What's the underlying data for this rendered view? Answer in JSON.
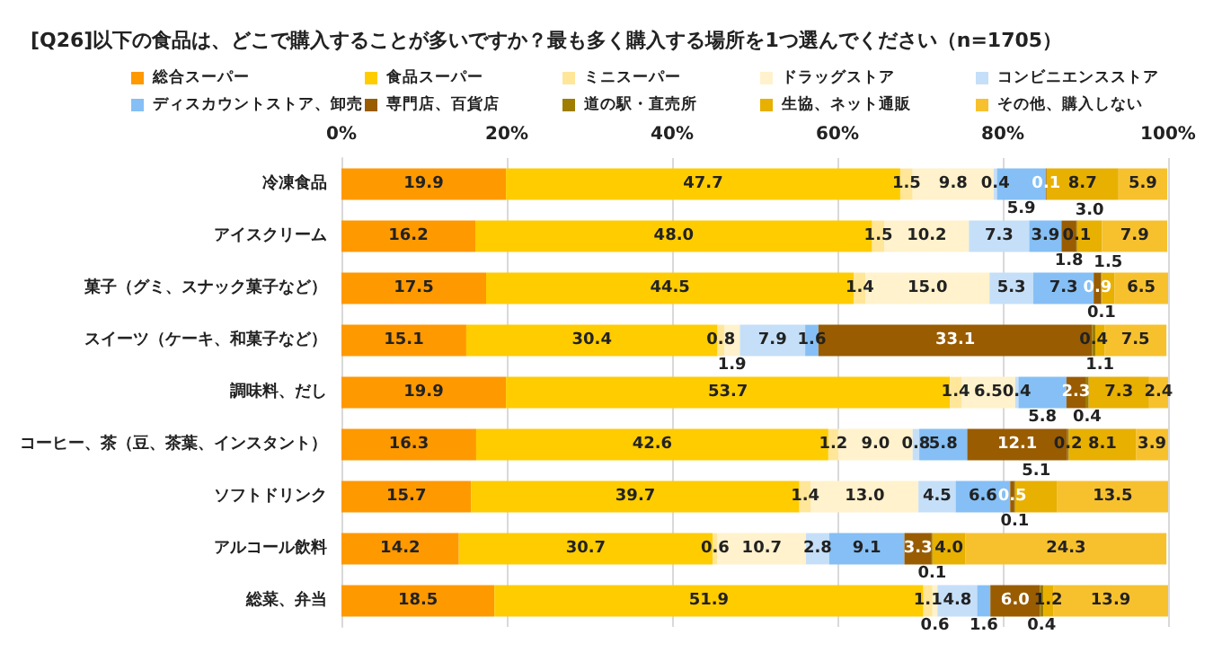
{
  "chart_data": {
    "type": "bar",
    "orientation": "horizontal",
    "stacked": true,
    "title": "[Q26]以下の食品は、どこで購入することが多いですか？最も多く購入する場所を1つ選んでください（n=1705）",
    "categories": [
      "冷凍食品",
      "アイスクリーム",
      "菓子（グミ、スナック菓子など）",
      "スイーツ（ケーキ、和菓子など）",
      "調味料、だし",
      "コーヒー、茶（豆、茶葉、インスタント）",
      "ソフトドリンク",
      "アルコール飲料",
      "総菜、弁当"
    ],
    "series": [
      {
        "name": "総合スーパー",
        "color": "#ff9900",
        "values": [
          19.9,
          16.2,
          17.5,
          15.1,
          19.9,
          16.3,
          15.7,
          14.2,
          18.5
        ],
        "value_labels": [
          "19.9",
          "16.2",
          "17.5",
          "15.1",
          "19.9",
          "16.3",
          "15.7",
          "14.2",
          "18.5"
        ]
      },
      {
        "name": "食品スーパー",
        "color": "#ffcc00",
        "values": [
          47.7,
          48.0,
          44.5,
          30.4,
          53.7,
          42.6,
          39.7,
          30.7,
          51.9
        ],
        "value_labels": [
          "47.7",
          "48.0",
          "44.5",
          "30.4",
          "53.7",
          "42.6",
          "39.7",
          "30.7",
          "51.9"
        ]
      },
      {
        "name": "ミニスーパー",
        "color": "#ffe699",
        "values": [
          1.5,
          1.5,
          1.4,
          0.8,
          1.4,
          1.2,
          1.4,
          0.6,
          1.1
        ],
        "value_labels": [
          "1.5",
          "1.5",
          "1.4",
          "0.8",
          "1.4",
          "1.2",
          "1.4",
          "0.6",
          "1.1"
        ]
      },
      {
        "name": "ドラッグストア",
        "color": "#fff2cc",
        "values": [
          9.8,
          10.2,
          15.0,
          1.9,
          6.5,
          9.0,
          13.0,
          10.7,
          0.6
        ],
        "value_labels": [
          "9.8",
          "10.2",
          "15.0",
          "1.9",
          "6.5",
          "9.0",
          "13.0",
          "10.7",
          "0.6"
        ]
      },
      {
        "name": "コンビニエンスストア",
        "color": "#c5dff8",
        "values": [
          0.4,
          7.3,
          5.3,
          7.9,
          0.4,
          0.8,
          4.5,
          2.8,
          4.8
        ],
        "value_labels": [
          "0.4",
          "7.3",
          "5.3",
          "7.9",
          "0.4",
          "0.8",
          "4.5",
          "2.8",
          "4.8"
        ]
      },
      {
        "name": "ディスカウントストア、卸売",
        "color": "#85bff5",
        "values": [
          5.9,
          3.9,
          7.3,
          1.6,
          5.8,
          5.8,
          6.6,
          9.1,
          1.6
        ],
        "value_labels": [
          "5.9",
          "3.9",
          "7.3",
          "1.6",
          "5.8",
          "5.8",
          "6.6",
          "9.1",
          "1.6"
        ]
      },
      {
        "name": "専門店、百貨店",
        "color": "#995c00",
        "values": [
          0.1,
          1.8,
          0.9,
          33.1,
          2.3,
          12.1,
          0.5,
          3.3,
          6.0
        ],
        "value_labels": [
          "0.1",
          "1.8",
          "0.9",
          "33.1",
          "2.3",
          "12.1",
          "0.5",
          "3.3",
          "6.0"
        ]
      },
      {
        "name": "道の駅・直売所",
        "color": "#9e7d00",
        "values": [
          null,
          0.1,
          0.1,
          0.4,
          0.4,
          0.2,
          0.1,
          0.1,
          0.4
        ],
        "value_labels": [
          null,
          "0.1",
          "0.1",
          "0.4",
          "0.4",
          "0.2",
          "0.1",
          "0.1",
          "0.4"
        ]
      },
      {
        "name": "生協、ネット通販",
        "color": "#e8b000",
        "values": [
          8.7,
          3.0,
          1.5,
          1.1,
          7.3,
          8.1,
          5.1,
          4.0,
          1.2
        ],
        "value_labels": [
          "8.7",
          "3.0",
          "1.5",
          "1.1",
          "7.3",
          "8.1",
          "5.1",
          "4.0",
          "1.2"
        ]
      },
      {
        "name": "その他、購入しない",
        "color": "#f7c12e",
        "values": [
          5.9,
          7.9,
          6.5,
          7.5,
          2.4,
          3.9,
          13.5,
          24.3,
          13.9
        ],
        "value_labels": [
          "5.9",
          "7.9",
          "6.5",
          "7.5",
          "2.4",
          "3.9",
          "13.5",
          "24.3",
          "13.9"
        ]
      }
    ],
    "xlim": [
      0,
      100
    ],
    "xticks": [
      {
        "value": 0,
        "label": "0%"
      },
      {
        "value": 20,
        "label": "20%"
      },
      {
        "value": 40,
        "label": "40%"
      },
      {
        "value": 60,
        "label": "60%"
      },
      {
        "value": 80,
        "label": "80%"
      },
      {
        "value": 100,
        "label": "100%"
      }
    ],
    "grid": "x",
    "legend": "top"
  }
}
